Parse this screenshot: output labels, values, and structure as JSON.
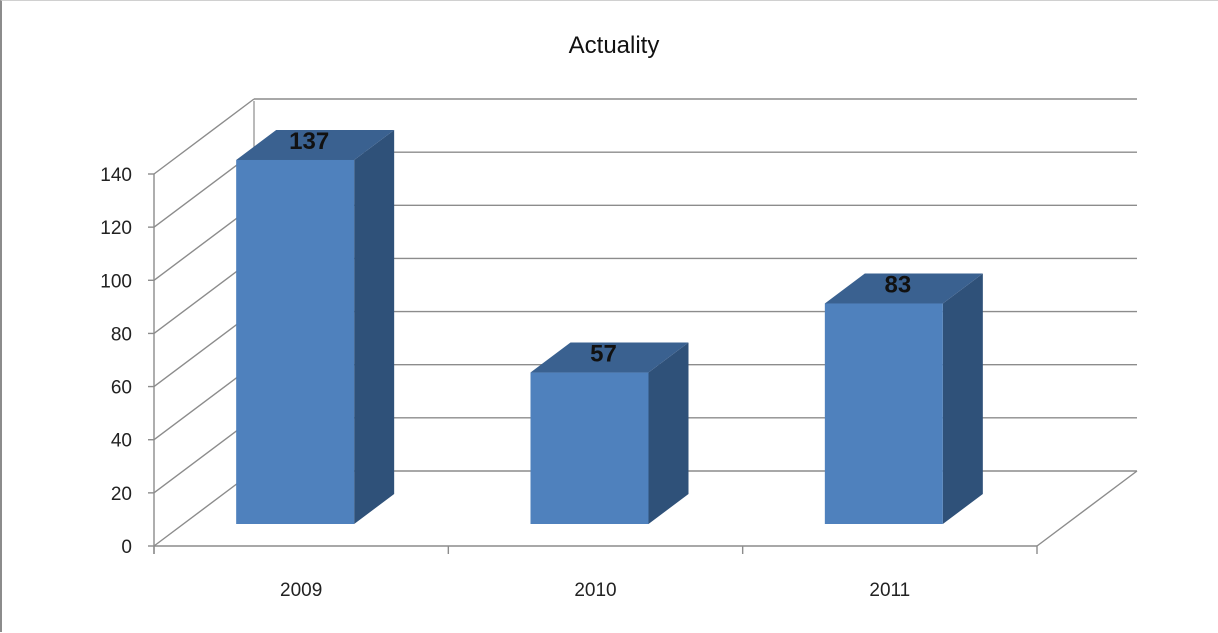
{
  "chart_data": {
    "type": "bar",
    "title": "Actuality",
    "categories": [
      "2009",
      "2010",
      "2011"
    ],
    "values": [
      137,
      57,
      83
    ],
    "data_labels": [
      "137",
      "57",
      "83"
    ],
    "yticks": [
      0,
      20,
      40,
      60,
      80,
      100,
      120,
      140
    ],
    "ytick_labels": [
      "0",
      "20",
      "40",
      "60",
      "80",
      "100",
      "120",
      "140"
    ],
    "ylim": [
      0,
      140
    ],
    "grid": true,
    "three_d": true,
    "colors": {
      "front": "#4f81bd",
      "side": "#2f5179",
      "top": "#3a6190",
      "grid": "#8c8c8c"
    }
  }
}
